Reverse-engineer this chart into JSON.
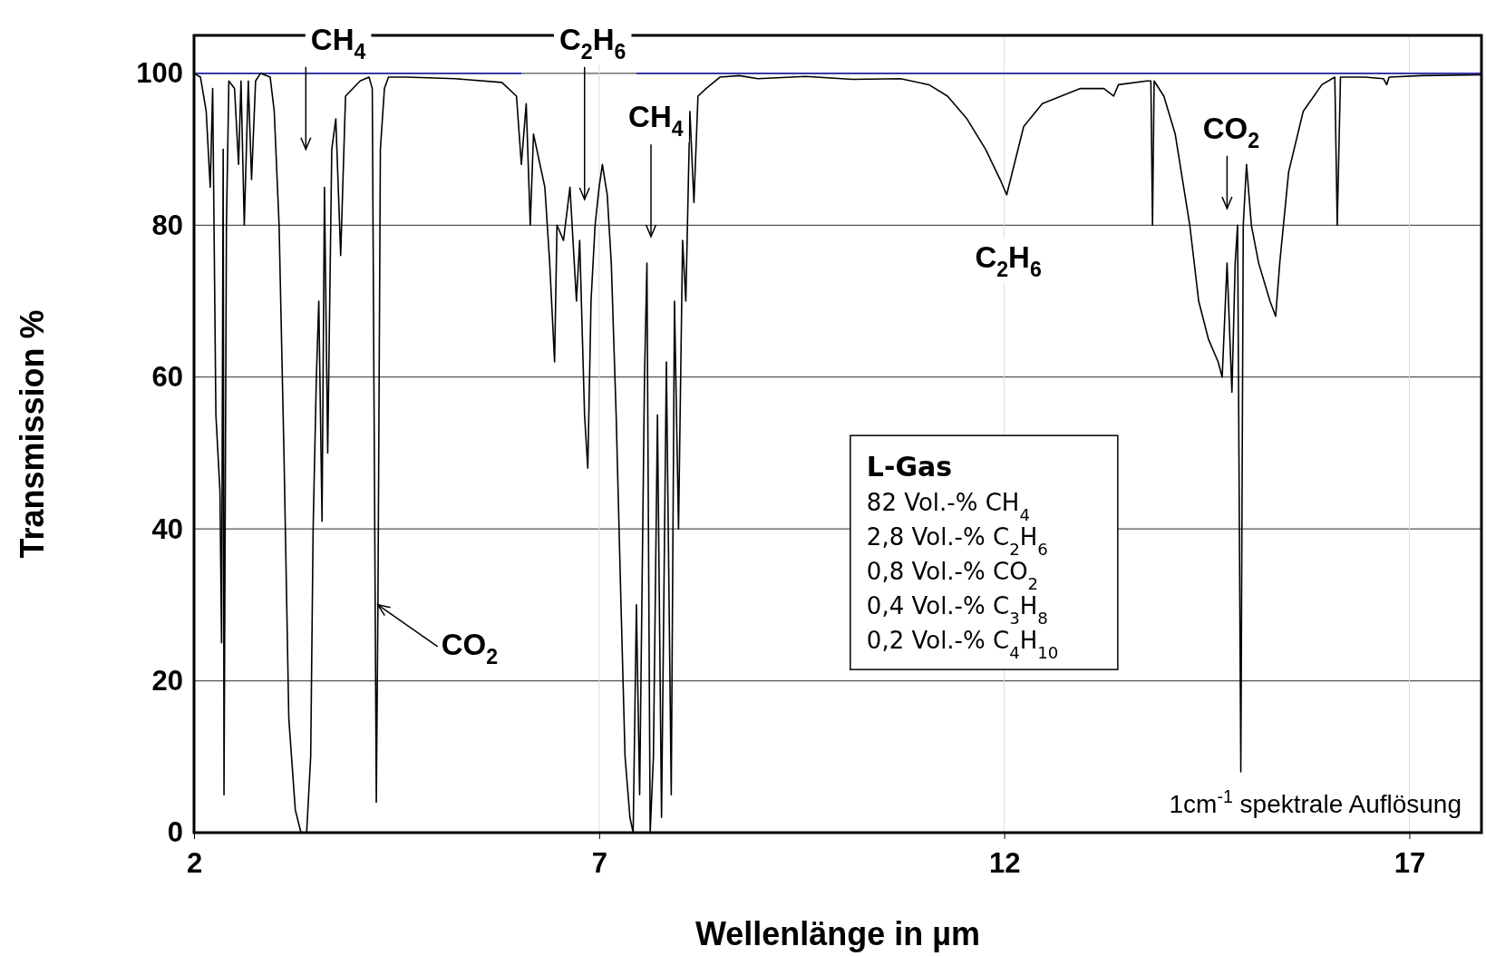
{
  "chart_data": {
    "type": "line",
    "xlabel": "Wellenlänge in µm",
    "ylabel": "Transmission %",
    "xlim": [
      2,
      17.89
    ],
    "ylim": [
      0,
      105
    ],
    "xticks": [
      2,
      7,
      12,
      17
    ],
    "yticks": [
      0,
      20,
      40,
      60,
      80,
      100
    ],
    "grid": true,
    "marker": "none",
    "line_style": "solid",
    "series": [
      {
        "color": "#2a2aa8",
        "x": [
          2,
          6.04,
          6.8,
          7.46,
          17.89
        ],
        "values": [
          100,
          100,
          null,
          100,
          100
        ]
      },
      {
        "color": "#000000",
        "x": [
          2,
          2.08,
          2.15,
          2.2,
          2.23,
          2.27,
          2.32,
          2.34,
          2.36,
          2.37,
          2.4,
          2.43,
          2.5,
          2.55,
          2.58,
          2.62,
          2.67,
          2.71,
          2.76,
          2.82,
          2.94,
          2.99,
          3.05,
          3.11,
          3.17,
          3.25,
          3.32,
          3.39,
          3.44,
          3.47,
          3.51,
          3.54,
          3.58,
          3.61,
          3.65,
          3.7,
          3.75,
          3.81,
          3.87,
          4.05,
          4.16,
          4.2,
          4.22,
          4.25,
          4.27,
          4.3,
          4.35,
          4.4,
          4.63,
          5.22,
          5.8,
          5.98,
          6.04,
          6.1,
          6.15,
          6.19,
          6.33,
          6.39,
          6.45,
          6.48,
          6.56,
          6.64,
          6.72,
          6.76,
          6.82,
          6.86,
          6.9,
          6.95,
          7.0,
          7.04,
          7.1,
          7.15,
          7.21,
          7.27,
          7.32,
          7.38,
          7.42,
          7.46,
          7.5,
          7.56,
          7.59,
          7.63,
          7.67,
          7.72,
          7.77,
          7.83,
          7.89,
          7.93,
          7.98,
          8.03,
          8.07,
          8.12,
          8.17,
          8.22,
          8.32,
          8.49,
          8.73,
          8.96,
          9.55,
          10.13,
          10.72,
          11.07,
          11.3,
          11.54,
          11.77,
          11.95,
          12.03,
          12.1,
          12.24,
          12.47,
          12.94,
          13.23,
          13.35,
          13.41,
          13.76,
          13.81,
          13.83,
          13.85,
          13.97,
          14.11,
          14.29,
          14.4,
          14.52,
          14.64,
          14.69,
          14.75,
          14.81,
          14.85,
          14.88,
          14.92,
          14.95,
          14.99,
          15.05,
          15.14,
          15.28,
          15.35,
          15.4,
          15.51,
          15.69,
          15.92,
          16.08,
          16.11,
          16.15,
          16.45,
          16.68,
          16.72,
          16.75,
          17.15,
          17.89
        ],
        "values": [
          100,
          99.5,
          95,
          85,
          98,
          55,
          45,
          25,
          90,
          5,
          80,
          99,
          98,
          88,
          99,
          80,
          99,
          86,
          99,
          100,
          99.5,
          95,
          80,
          50,
          15,
          3,
          0,
          0,
          10,
          40,
          60,
          70,
          41,
          85,
          50,
          90,
          94,
          76,
          97,
          99,
          99.5,
          98,
          60,
          4,
          30,
          90,
          98,
          99.5,
          99.5,
          99.3,
          98.8,
          97,
          88,
          96,
          80,
          92,
          85,
          75,
          62,
          80,
          78,
          85,
          70,
          78,
          55,
          48,
          70,
          80,
          85,
          88,
          84,
          75,
          55,
          30,
          10,
          2,
          0,
          30,
          5,
          60,
          75,
          0,
          10,
          55,
          2,
          62,
          5,
          70,
          40,
          78,
          70,
          95,
          83,
          97,
          98,
          99.5,
          99.7,
          99.3,
          99.6,
          99.2,
          99.3,
          98.5,
          97,
          94,
          90,
          86,
          84,
          87,
          93,
          96,
          98,
          98,
          97,
          98.5,
          99,
          99,
          80,
          99,
          97,
          92,
          80,
          70,
          65,
          62,
          60,
          75,
          58,
          75,
          80,
          8,
          80,
          88,
          80,
          75,
          70,
          68,
          75,
          87,
          95,
          98.5,
          99.5,
          80,
          99.5,
          99.5,
          99.3,
          98.5,
          99.5,
          99.7,
          99.8
        ]
      }
    ],
    "annotations": [
      "CH$_{4}$",
      "C$_{2}$H$_{6}$",
      "CH$_{4}$",
      {
        "text": "CO$_{2}$",
        "x": 4.27,
        "y": 30
      },
      "C$_{2}$H$_{6}$",
      "CO$_{2}$",
      "L-Gas",
      "82 Vol.-% CH$_{4}$",
      "2,8 Vol.-% C$_{2}$H$_{6}$",
      "0,8 Vol.-% CO$_{2}$",
      "0,4 Vol.-% C$_{3}$H$_{8}$",
      "0,2  Vol.-% C$_{4}$H$_{10}$",
      "1cm$^{-1}$ spektrale Auflösung"
    ]
  }
}
